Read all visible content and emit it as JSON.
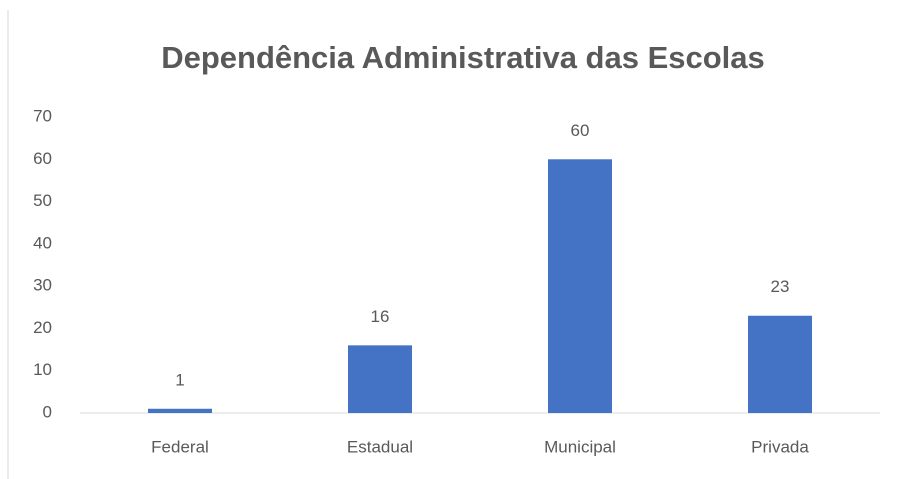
{
  "chart_data": {
    "type": "bar",
    "title": "Dependência Administrativa das Escolas",
    "categories": [
      "Federal",
      "Estadual",
      "Municipal",
      "Privada"
    ],
    "values": [
      1,
      16,
      60,
      23
    ],
    "color": "#4472c4",
    "ylim": [
      0,
      70
    ],
    "yticks": [
      0,
      10,
      20,
      30,
      40,
      50,
      60,
      70
    ],
    "grid": false,
    "data_labels": true
  }
}
